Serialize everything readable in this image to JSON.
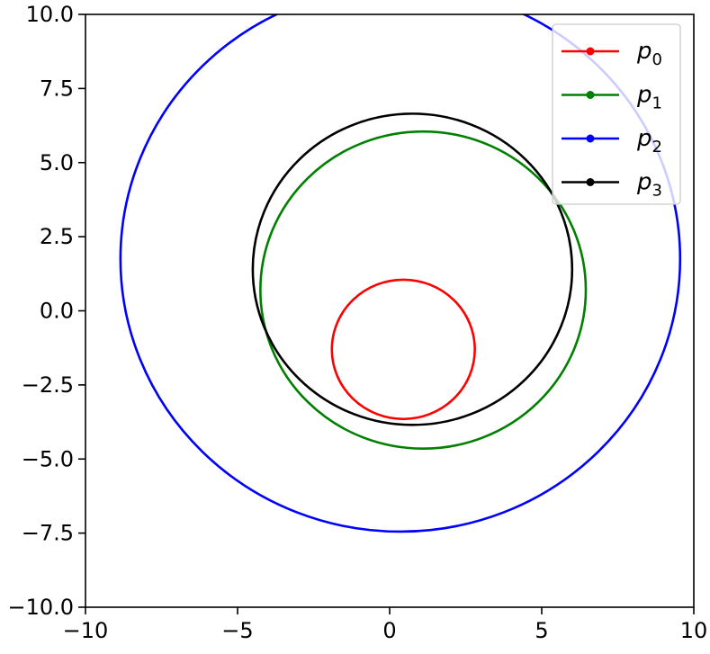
{
  "chart_data": {
    "type": "line",
    "title": "",
    "xlabel": "",
    "ylabel": "",
    "xlim": [
      -10,
      10
    ],
    "ylim": [
      -10,
      10
    ],
    "xticks": [
      -10,
      -5,
      0,
      5,
      10
    ],
    "yticks": [
      -10.0,
      -7.5,
      -5.0,
      -2.5,
      0.0,
      2.5,
      5.0,
      7.5,
      10.0
    ],
    "xtick_labels": [
      "−10",
      "−5",
      "0",
      "5",
      "10"
    ],
    "ytick_labels": [
      "−10.0",
      "−7.5",
      "−5.0",
      "−2.5",
      "0.0",
      "2.5",
      "5.0",
      "7.5",
      "10.0"
    ],
    "grid": false,
    "legend_position": "top-right",
    "series": [
      {
        "name": "p",
        "subscript": "0",
        "color": "#ff0000",
        "center": [
          0.45,
          -1.3
        ],
        "radius": 2.35
      },
      {
        "name": "p",
        "subscript": "1",
        "color": "#008000",
        "center": [
          1.1,
          0.7
        ],
        "radius": 5.35
      },
      {
        "name": "p",
        "subscript": "2",
        "color": "#0000ff",
        "center": [
          0.35,
          1.75
        ],
        "radius": 9.2
      },
      {
        "name": "p",
        "subscript": "3",
        "color": "#000000",
        "center": [
          0.75,
          1.4
        ],
        "radius": 5.25
      }
    ]
  }
}
